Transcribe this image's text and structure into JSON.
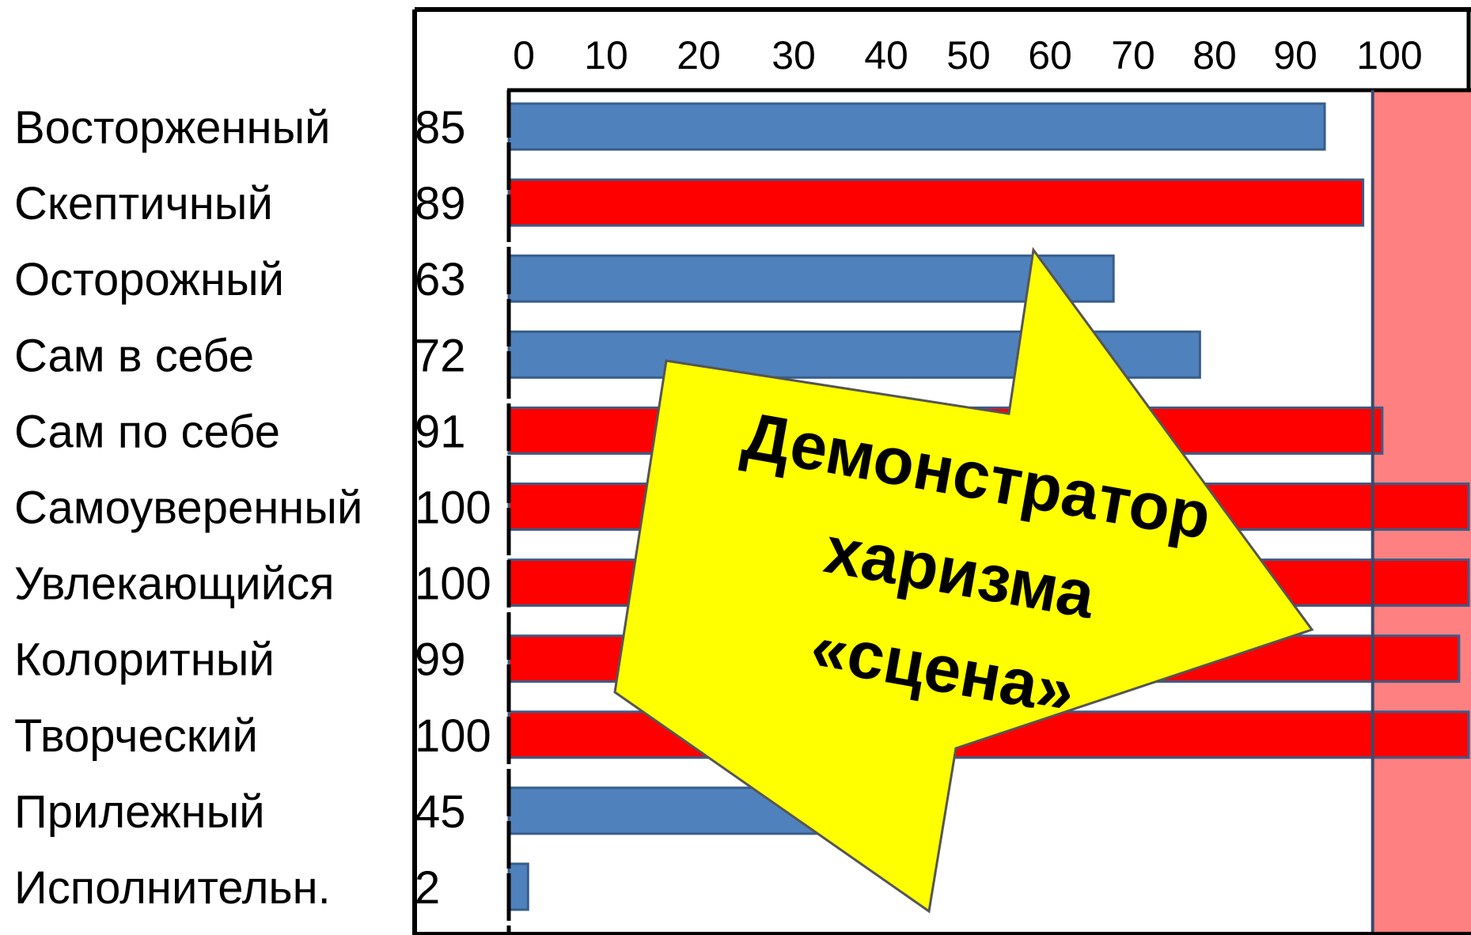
{
  "chart_data": {
    "type": "bar",
    "orientation": "horizontal",
    "categories": [
      "Восторженный",
      "Скептичный",
      "Осторожный",
      "Сам в себе",
      "Сам по себе",
      "Самоуверенный",
      "Увлекающийся",
      "Колоритный",
      "Творческий",
      "Прилежный",
      "Исполнительн."
    ],
    "values": [
      85,
      89,
      63,
      72,
      91,
      100,
      100,
      99,
      100,
      45,
      2
    ],
    "value_labels": [
      "85",
      "89",
      "63",
      "72",
      "91",
      "100",
      "100",
      "99",
      "100",
      "45",
      "2"
    ],
    "bar_colors": [
      "#4f81bd",
      "#ff0000",
      "#4f81bd",
      "#4f81bd",
      "#ff0000",
      "#ff0000",
      "#ff0000",
      "#ff0000",
      "#ff0000",
      "#4f81bd",
      "#4f81bd"
    ],
    "xlim": [
      0,
      100
    ],
    "x_ticks": [
      0,
      10,
      20,
      30,
      40,
      50,
      60,
      70,
      80,
      90,
      100
    ],
    "x_tick_labels": [
      "0",
      "10",
      "20",
      "30",
      "40",
      "50",
      "60",
      "70",
      "80",
      "90",
      "100"
    ],
    "x_axis_position": "top",
    "highlight_band": {
      "from": 90,
      "to": 100,
      "color": "#ff8080"
    },
    "grid": false,
    "title": "",
    "xlabel": "",
    "ylabel": ""
  },
  "callout": {
    "lines": [
      "Демонстратор",
      "харизма",
      "«сцена»"
    ],
    "fill": "#ffff00",
    "stroke": "#555555"
  },
  "colors": {
    "blue_bar": "#4f81bd",
    "red_bar": "#ff0000",
    "band": "#ff8080",
    "bar_border": "#385d8a"
  }
}
